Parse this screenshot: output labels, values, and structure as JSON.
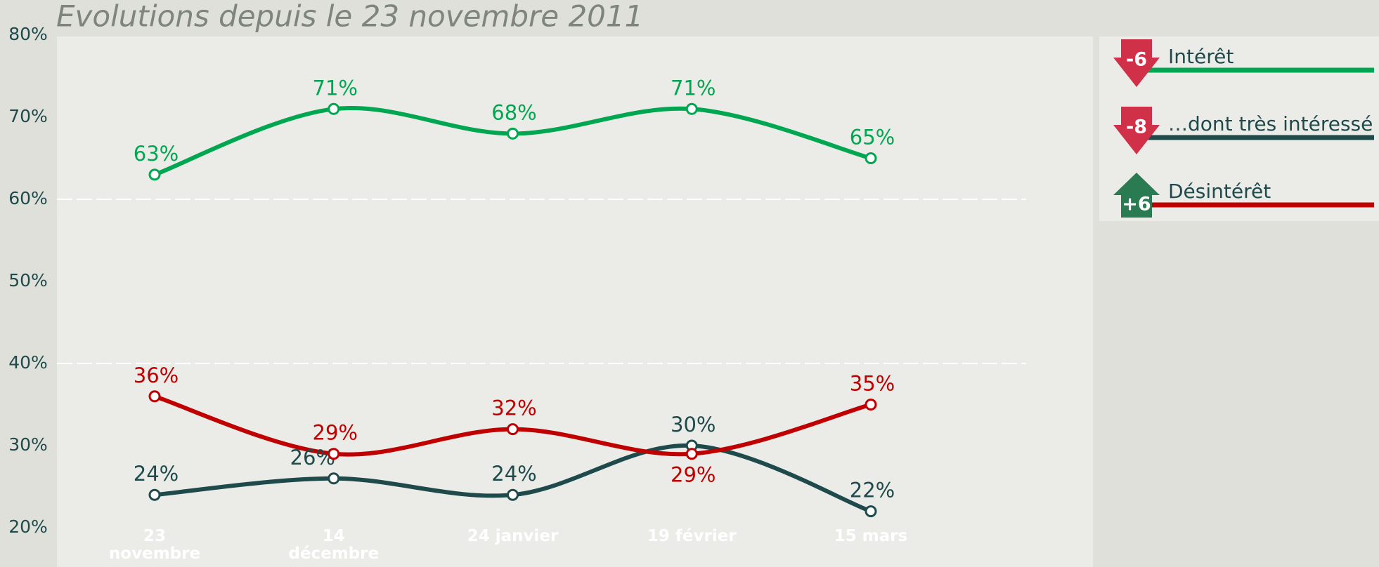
{
  "chart_data": {
    "type": "line",
    "title": "Evolutions depuis le 23 novembre 2011",
    "categories": [
      "23 novembre",
      "14 décembre",
      "24 janvier",
      "19 février",
      "15 mars"
    ],
    "ylim": [
      20,
      80
    ],
    "yticks": [
      {
        "value": 20,
        "label": "20%"
      },
      {
        "value": 30,
        "label": "30%"
      },
      {
        "value": 40,
        "label": "40%"
      },
      {
        "value": 50,
        "label": "50%"
      },
      {
        "value": 60,
        "label": "60%"
      },
      {
        "value": 70,
        "label": "70%"
      },
      {
        "value": 80,
        "label": "80%"
      }
    ],
    "gridlines": [
      40,
      60
    ],
    "series": [
      {
        "name": "Intérêt",
        "color": "#00a650",
        "change": "-6",
        "values": [
          63,
          71,
          68,
          71,
          65
        ],
        "value_labels": [
          "63%",
          "71%",
          "68%",
          "71%",
          "65%"
        ]
      },
      {
        "name": "…dont très intéressé",
        "color": "#1f4a4c",
        "change": "-8",
        "values": [
          24,
          26,
          24,
          30,
          22
        ],
        "value_labels": [
          "24%",
          "26%",
          "24%",
          "30%",
          "22%"
        ]
      },
      {
        "name": "Désintérêt",
        "color": "#c00000",
        "change": "+6",
        "values": [
          36,
          29,
          32,
          29,
          35
        ],
        "value_labels": [
          "36%",
          "29%",
          "32%",
          "29%",
          "35%"
        ]
      }
    ]
  }
}
